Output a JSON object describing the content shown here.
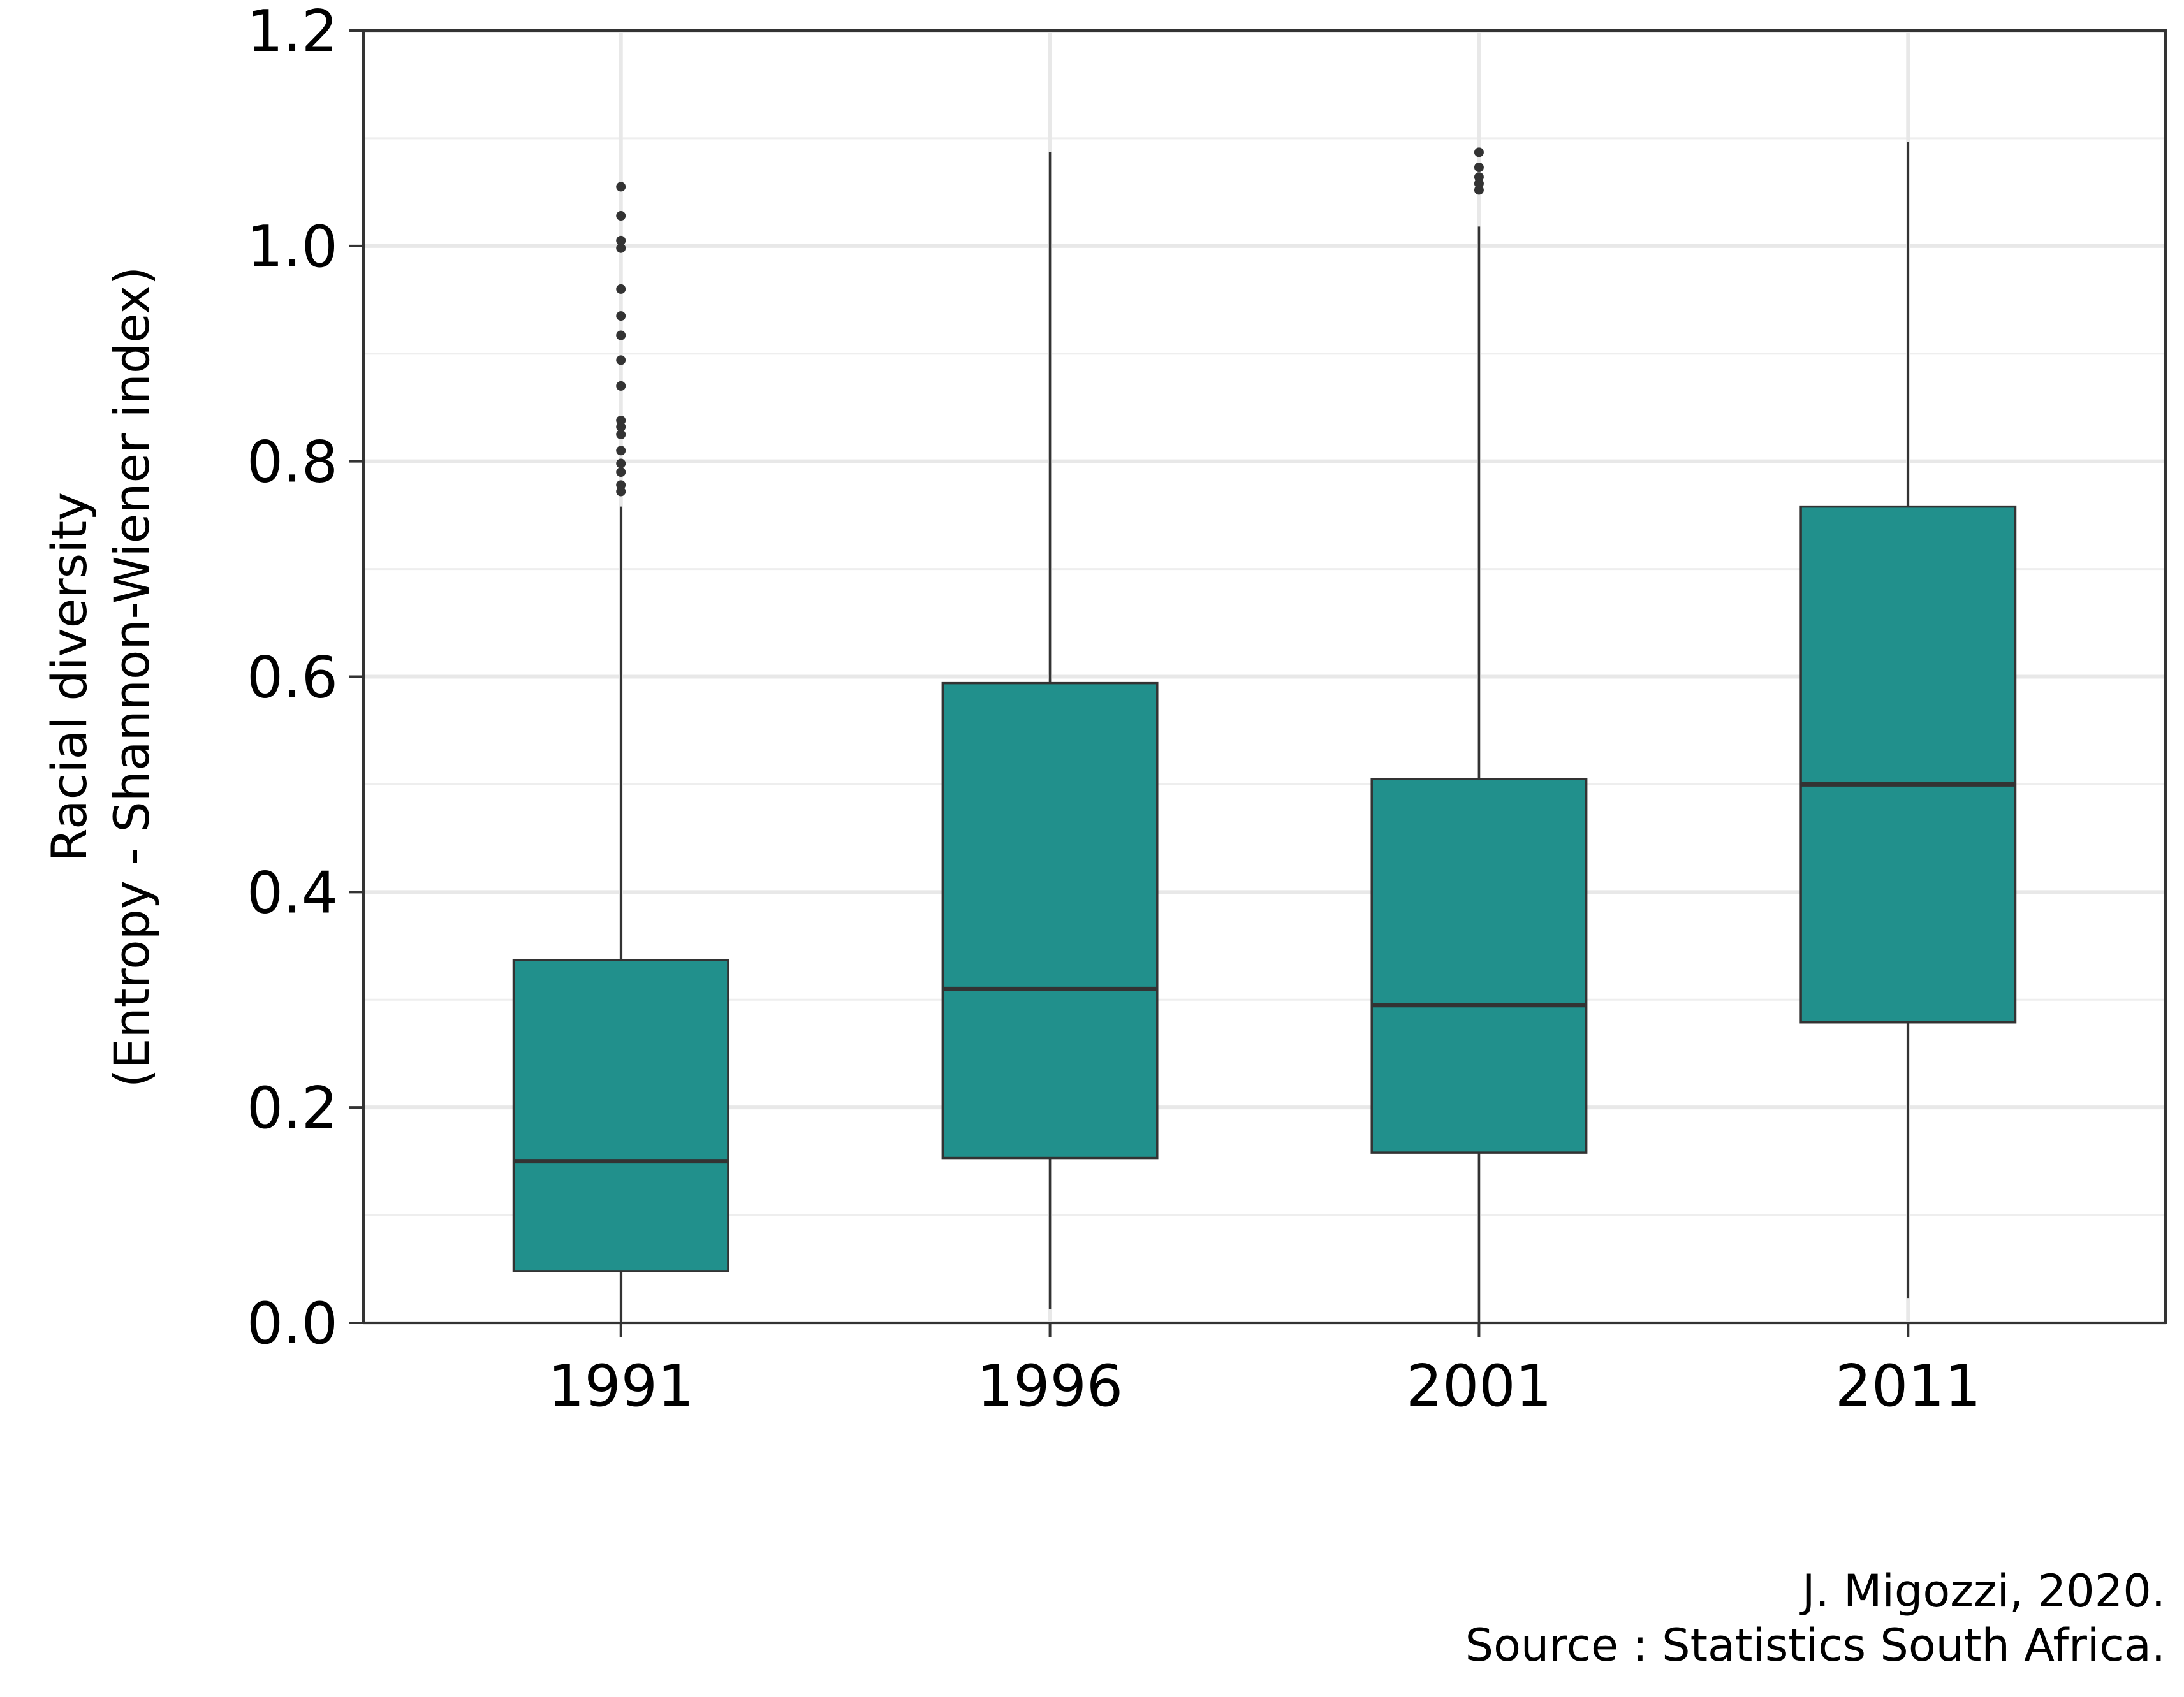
{
  "chart_data": {
    "type": "boxplot",
    "xlabel": "",
    "ylabel_lines": [
      "Racial diversity",
      "(Entropy - Shannon-Wiener index)"
    ],
    "ylim": [
      0,
      1.2
    ],
    "y_ticks": [
      "0.0",
      "0.2",
      "0.4",
      "0.6",
      "0.8",
      "1.0",
      "1.2"
    ],
    "grid": true,
    "fill_color": "#21908C",
    "categories": [
      "1991",
      "1996",
      "2001",
      "2011"
    ],
    "boxes": [
      {
        "category": "1991",
        "whisker_low": 0.0,
        "q1": 0.048,
        "median": 0.15,
        "q3": 0.337,
        "whisker_high": 0.758,
        "outliers": [
          0.772,
          0.778,
          0.79,
          0.798,
          0.81,
          0.825,
          0.832,
          0.838,
          0.87,
          0.894,
          0.917,
          0.935,
          0.96,
          0.998,
          1.005,
          1.028,
          1.055
        ]
      },
      {
        "category": "1996",
        "whisker_low": 0.013,
        "q1": 0.153,
        "median": 0.31,
        "q3": 0.594,
        "whisker_high": 1.087,
        "outliers": []
      },
      {
        "category": "2001",
        "whisker_low": 0.0,
        "q1": 0.158,
        "median": 0.295,
        "q3": 0.505,
        "whisker_high": 1.018,
        "outliers": [
          1.052,
          1.058,
          1.064,
          1.073,
          1.087
        ]
      },
      {
        "category": "2011",
        "whisker_low": 0.023,
        "q1": 0.279,
        "median": 0.5,
        "q3": 0.758,
        "whisker_high": 1.097,
        "outliers": []
      }
    ]
  },
  "caption": {
    "line1": "J. Migozzi, 2020.",
    "line2": "Source : Statistics South Africa."
  }
}
